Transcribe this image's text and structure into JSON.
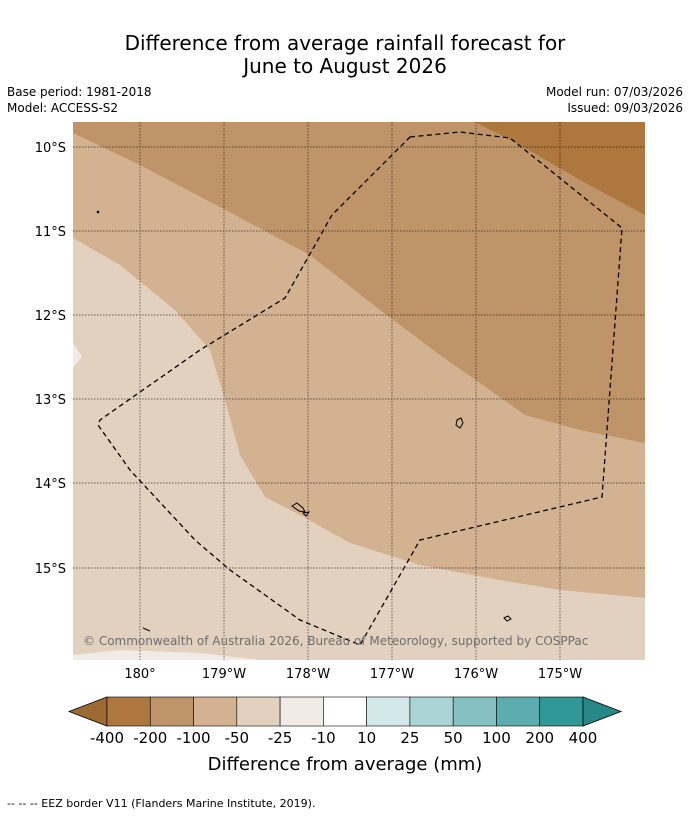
{
  "title_line1": "Difference from average rainfall forecast for",
  "title_line2": "June to August 2026",
  "base_period": "Base period: 1981-2018",
  "model": "Model: ACCESS-S2",
  "model_run": "Model run: 07/03/2026",
  "issued": "Issued: 09/03/2026",
  "copyright": "© Commonwealth of Australia 2026, Bureau of Meteorology, supported by COSPPac",
  "lat_ticks": [
    "10°S",
    "11°S",
    "12°S",
    "13°S",
    "14°S",
    "15°S"
  ],
  "lon_ticks": [
    "180°",
    "179°W",
    "178°W",
    "177°W",
    "176°W",
    "175°W"
  ],
  "colorbar": {
    "label": "Difference from average (mm)",
    "ticks": [
      "-400",
      "-200",
      "-100",
      "-50",
      "-25",
      "-10",
      "10",
      "25",
      "50",
      "100",
      "200",
      "400"
    ],
    "colors": [
      "#ad773e",
      "#bf9468",
      "#d3b291",
      "#e3d1bf",
      "#f1ebe5",
      "#ffffff",
      "#d3e8e8",
      "#abd4d4",
      "#84c1c0",
      "#5cadad",
      "#2f9896"
    ],
    "extend_min_color": "#9e6a34",
    "extend_max_color": "#278987"
  },
  "footer": "--  --  -- EEZ border V11 (Flanders Marine Institute, 2019)."
}
